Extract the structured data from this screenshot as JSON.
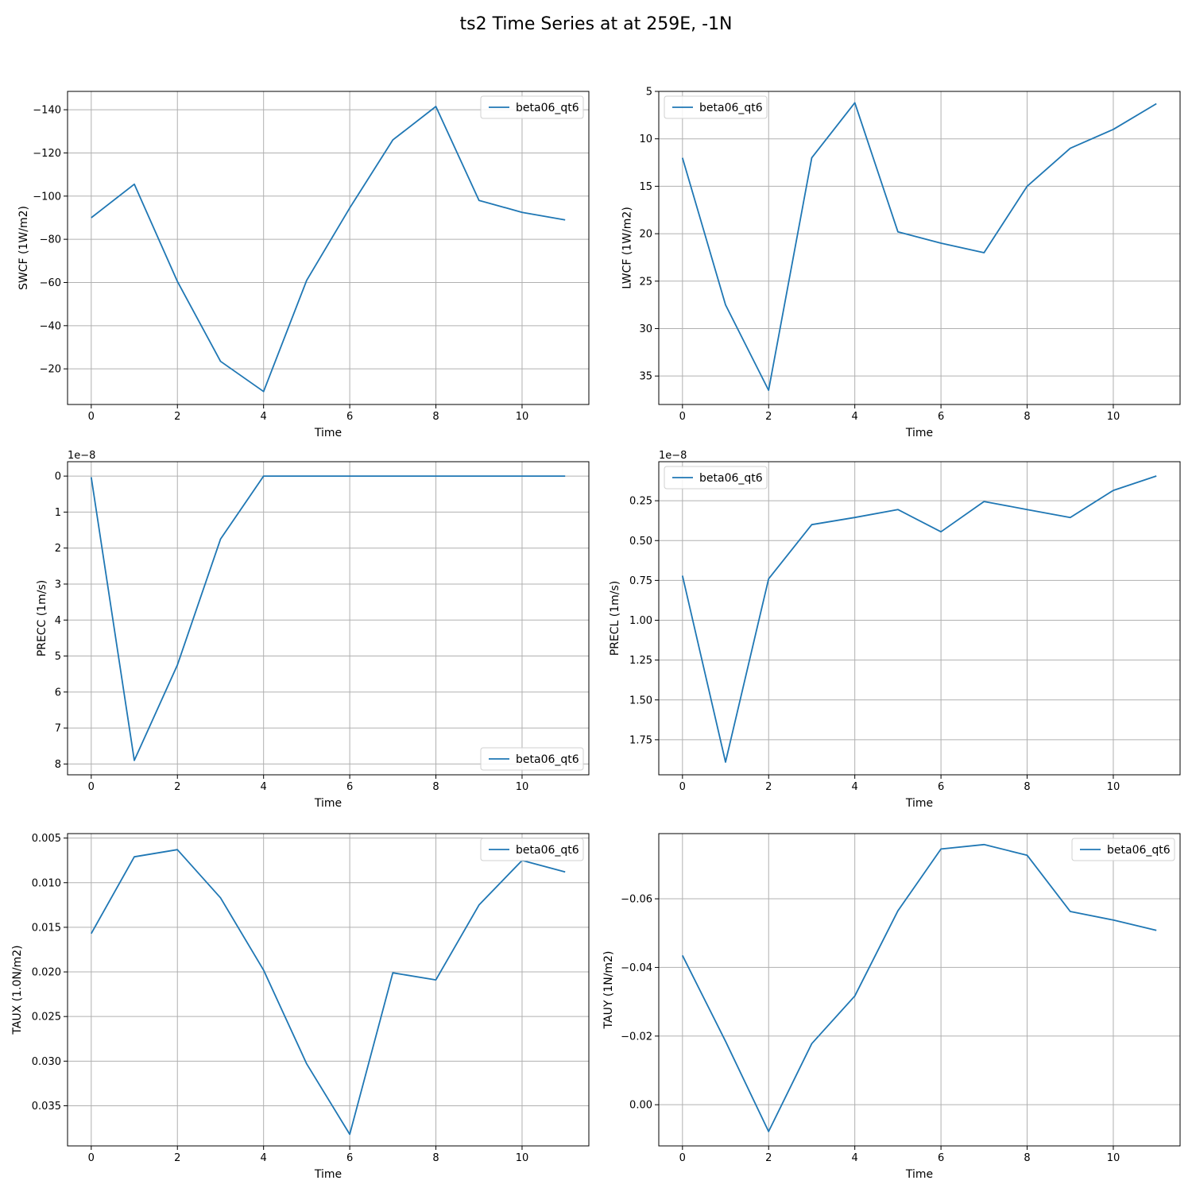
{
  "figure": {
    "title": "ts2 Time Series at at 259E, -1N",
    "line_color": "#1f77b4",
    "grid_color": "#b0b0b0"
  },
  "chart_data": [
    {
      "type": "line",
      "xlabel": "Time",
      "ylabel": "SWCF (1W/m2)",
      "x": [
        0,
        1,
        2,
        3,
        4,
        5,
        6,
        7,
        8,
        9,
        10,
        11
      ],
      "series": [
        {
          "name": "beta06_qt6",
          "values": [
            -90,
            -105.5,
            -60.5,
            -23.5,
            -9.5,
            -61,
            -94.5,
            -126,
            -141.5,
            -98,
            -92.5,
            -89
          ]
        }
      ],
      "xlim": [
        -0.55,
        11.55
      ],
      "ylim": [
        -3.5,
        -148.5
      ],
      "xticks": [
        0,
        2,
        4,
        6,
        8,
        10
      ],
      "xtick_labels": [
        "0",
        "2",
        "4",
        "6",
        "8",
        "10"
      ],
      "yticks": [
        -140,
        -120,
        -100,
        -80,
        -60,
        -40,
        -20
      ],
      "ytick_labels": [
        "−140",
        "−120",
        "−100",
        "−80",
        "−60",
        "−40",
        "−20"
      ],
      "y_inverted": true,
      "offset_text": "",
      "legend": "upper right",
      "grid": true
    },
    {
      "type": "line",
      "xlabel": "Time",
      "ylabel": "LWCF (1W/m2)",
      "x": [
        0,
        1,
        2,
        3,
        4,
        5,
        6,
        7,
        8,
        9,
        10,
        11
      ],
      "series": [
        {
          "name": "beta06_qt6",
          "values": [
            12,
            27.5,
            36.5,
            12,
            6.2,
            19.8,
            21,
            22,
            15,
            11,
            9,
            6.3
          ]
        }
      ],
      "xlim": [
        -0.55,
        11.55
      ],
      "ylim": [
        38,
        5
      ],
      "xticks": [
        0,
        2,
        4,
        6,
        8,
        10
      ],
      "xtick_labels": [
        "0",
        "2",
        "4",
        "6",
        "8",
        "10"
      ],
      "yticks": [
        5,
        10,
        15,
        20,
        25,
        30,
        35
      ],
      "ytick_labels": [
        "5",
        "10",
        "15",
        "20",
        "25",
        "30",
        "35"
      ],
      "y_inverted": true,
      "offset_text": "",
      "legend": "upper left",
      "grid": true
    },
    {
      "type": "line",
      "xlabel": "Time",
      "ylabel": "PRECC (1m/s)",
      "x": [
        0,
        1,
        2,
        3,
        4,
        5,
        6,
        7,
        8,
        9,
        10,
        11
      ],
      "series": [
        {
          "name": "beta06_qt6",
          "values": [
            0.03,
            7.9,
            5.25,
            1.75,
            0,
            0,
            0,
            0,
            0,
            0,
            0,
            0
          ]
        }
      ],
      "xlim": [
        -0.55,
        11.55
      ],
      "ylim": [
        8.3,
        -0.4
      ],
      "xticks": [
        0,
        2,
        4,
        6,
        8,
        10
      ],
      "xtick_labels": [
        "0",
        "2",
        "4",
        "6",
        "8",
        "10"
      ],
      "yticks": [
        0,
        1,
        2,
        3,
        4,
        5,
        6,
        7,
        8
      ],
      "ytick_labels": [
        "0",
        "1",
        "2",
        "3",
        "4",
        "5",
        "6",
        "7",
        "8"
      ],
      "y_inverted": true,
      "offset_text": "1e−8",
      "legend": "lower right",
      "grid": true
    },
    {
      "type": "line",
      "xlabel": "Time",
      "ylabel": "PRECL (1m/s)",
      "x": [
        0,
        1,
        2,
        3,
        4,
        5,
        6,
        7,
        8,
        9,
        10,
        11
      ],
      "series": [
        {
          "name": "beta06_qt6",
          "values": [
            0.72,
            1.89,
            0.74,
            0.4,
            0.355,
            0.305,
            0.445,
            0.255,
            0.305,
            0.355,
            0.185,
            0.095
          ]
        }
      ],
      "xlim": [
        -0.55,
        11.55
      ],
      "ylim": [
        1.97,
        0.005
      ],
      "xticks": [
        0,
        2,
        4,
        6,
        8,
        10
      ],
      "xtick_labels": [
        "0",
        "2",
        "4",
        "6",
        "8",
        "10"
      ],
      "yticks": [
        0.25,
        0.5,
        0.75,
        1.0,
        1.25,
        1.5,
        1.75
      ],
      "ytick_labels": [
        "0.25",
        "0.50",
        "0.75",
        "1.00",
        "1.25",
        "1.50",
        "1.75"
      ],
      "y_inverted": true,
      "offset_text": "1e−8",
      "legend": "upper left",
      "grid": true
    },
    {
      "type": "line",
      "xlabel": "Time",
      "ylabel": "TAUX (1.0N/m2)",
      "x": [
        0,
        1,
        2,
        3,
        4,
        5,
        6,
        7,
        8,
        9,
        10,
        11
      ],
      "series": [
        {
          "name": "beta06_qt6",
          "values": [
            0.0157,
            0.0071,
            0.0063,
            0.0117,
            0.0198,
            0.0303,
            0.0382,
            0.0201,
            0.0209,
            0.0125,
            0.0075,
            0.0088
          ]
        }
      ],
      "xlim": [
        -0.55,
        11.55
      ],
      "ylim": [
        0.0395,
        0.0045
      ],
      "xticks": [
        0,
        2,
        4,
        6,
        8,
        10
      ],
      "xtick_labels": [
        "0",
        "2",
        "4",
        "6",
        "8",
        "10"
      ],
      "yticks": [
        0.005,
        0.01,
        0.015,
        0.02,
        0.025,
        0.03,
        0.035
      ],
      "ytick_labels": [
        "0.005",
        "0.010",
        "0.015",
        "0.020",
        "0.025",
        "0.030",
        "0.035"
      ],
      "y_inverted": true,
      "offset_text": "",
      "legend": "upper right",
      "grid": true
    },
    {
      "type": "line",
      "xlabel": "Time",
      "ylabel": "TAUY (1N/m2)",
      "x": [
        0,
        1,
        2,
        3,
        4,
        5,
        6,
        7,
        8,
        9,
        10,
        11
      ],
      "series": [
        {
          "name": "beta06_qt6",
          "values": [
            -0.0435,
            -0.0185,
            0.0078,
            -0.0178,
            -0.0317,
            -0.0565,
            -0.0745,
            -0.0758,
            -0.0727,
            -0.0563,
            -0.0538,
            -0.0508
          ]
        }
      ],
      "xlim": [
        -0.55,
        11.55
      ],
      "ylim": [
        0.012,
        -0.079
      ],
      "xticks": [
        0,
        2,
        4,
        6,
        8,
        10
      ],
      "xtick_labels": [
        "0",
        "2",
        "4",
        "6",
        "8",
        "10"
      ],
      "yticks": [
        -0.06,
        -0.04,
        -0.02,
        0.0
      ],
      "ytick_labels": [
        "−0.06",
        "−0.04",
        "−0.02",
        "0.00"
      ],
      "y_inverted": true,
      "offset_text": "",
      "legend": "upper right",
      "grid": true
    }
  ]
}
